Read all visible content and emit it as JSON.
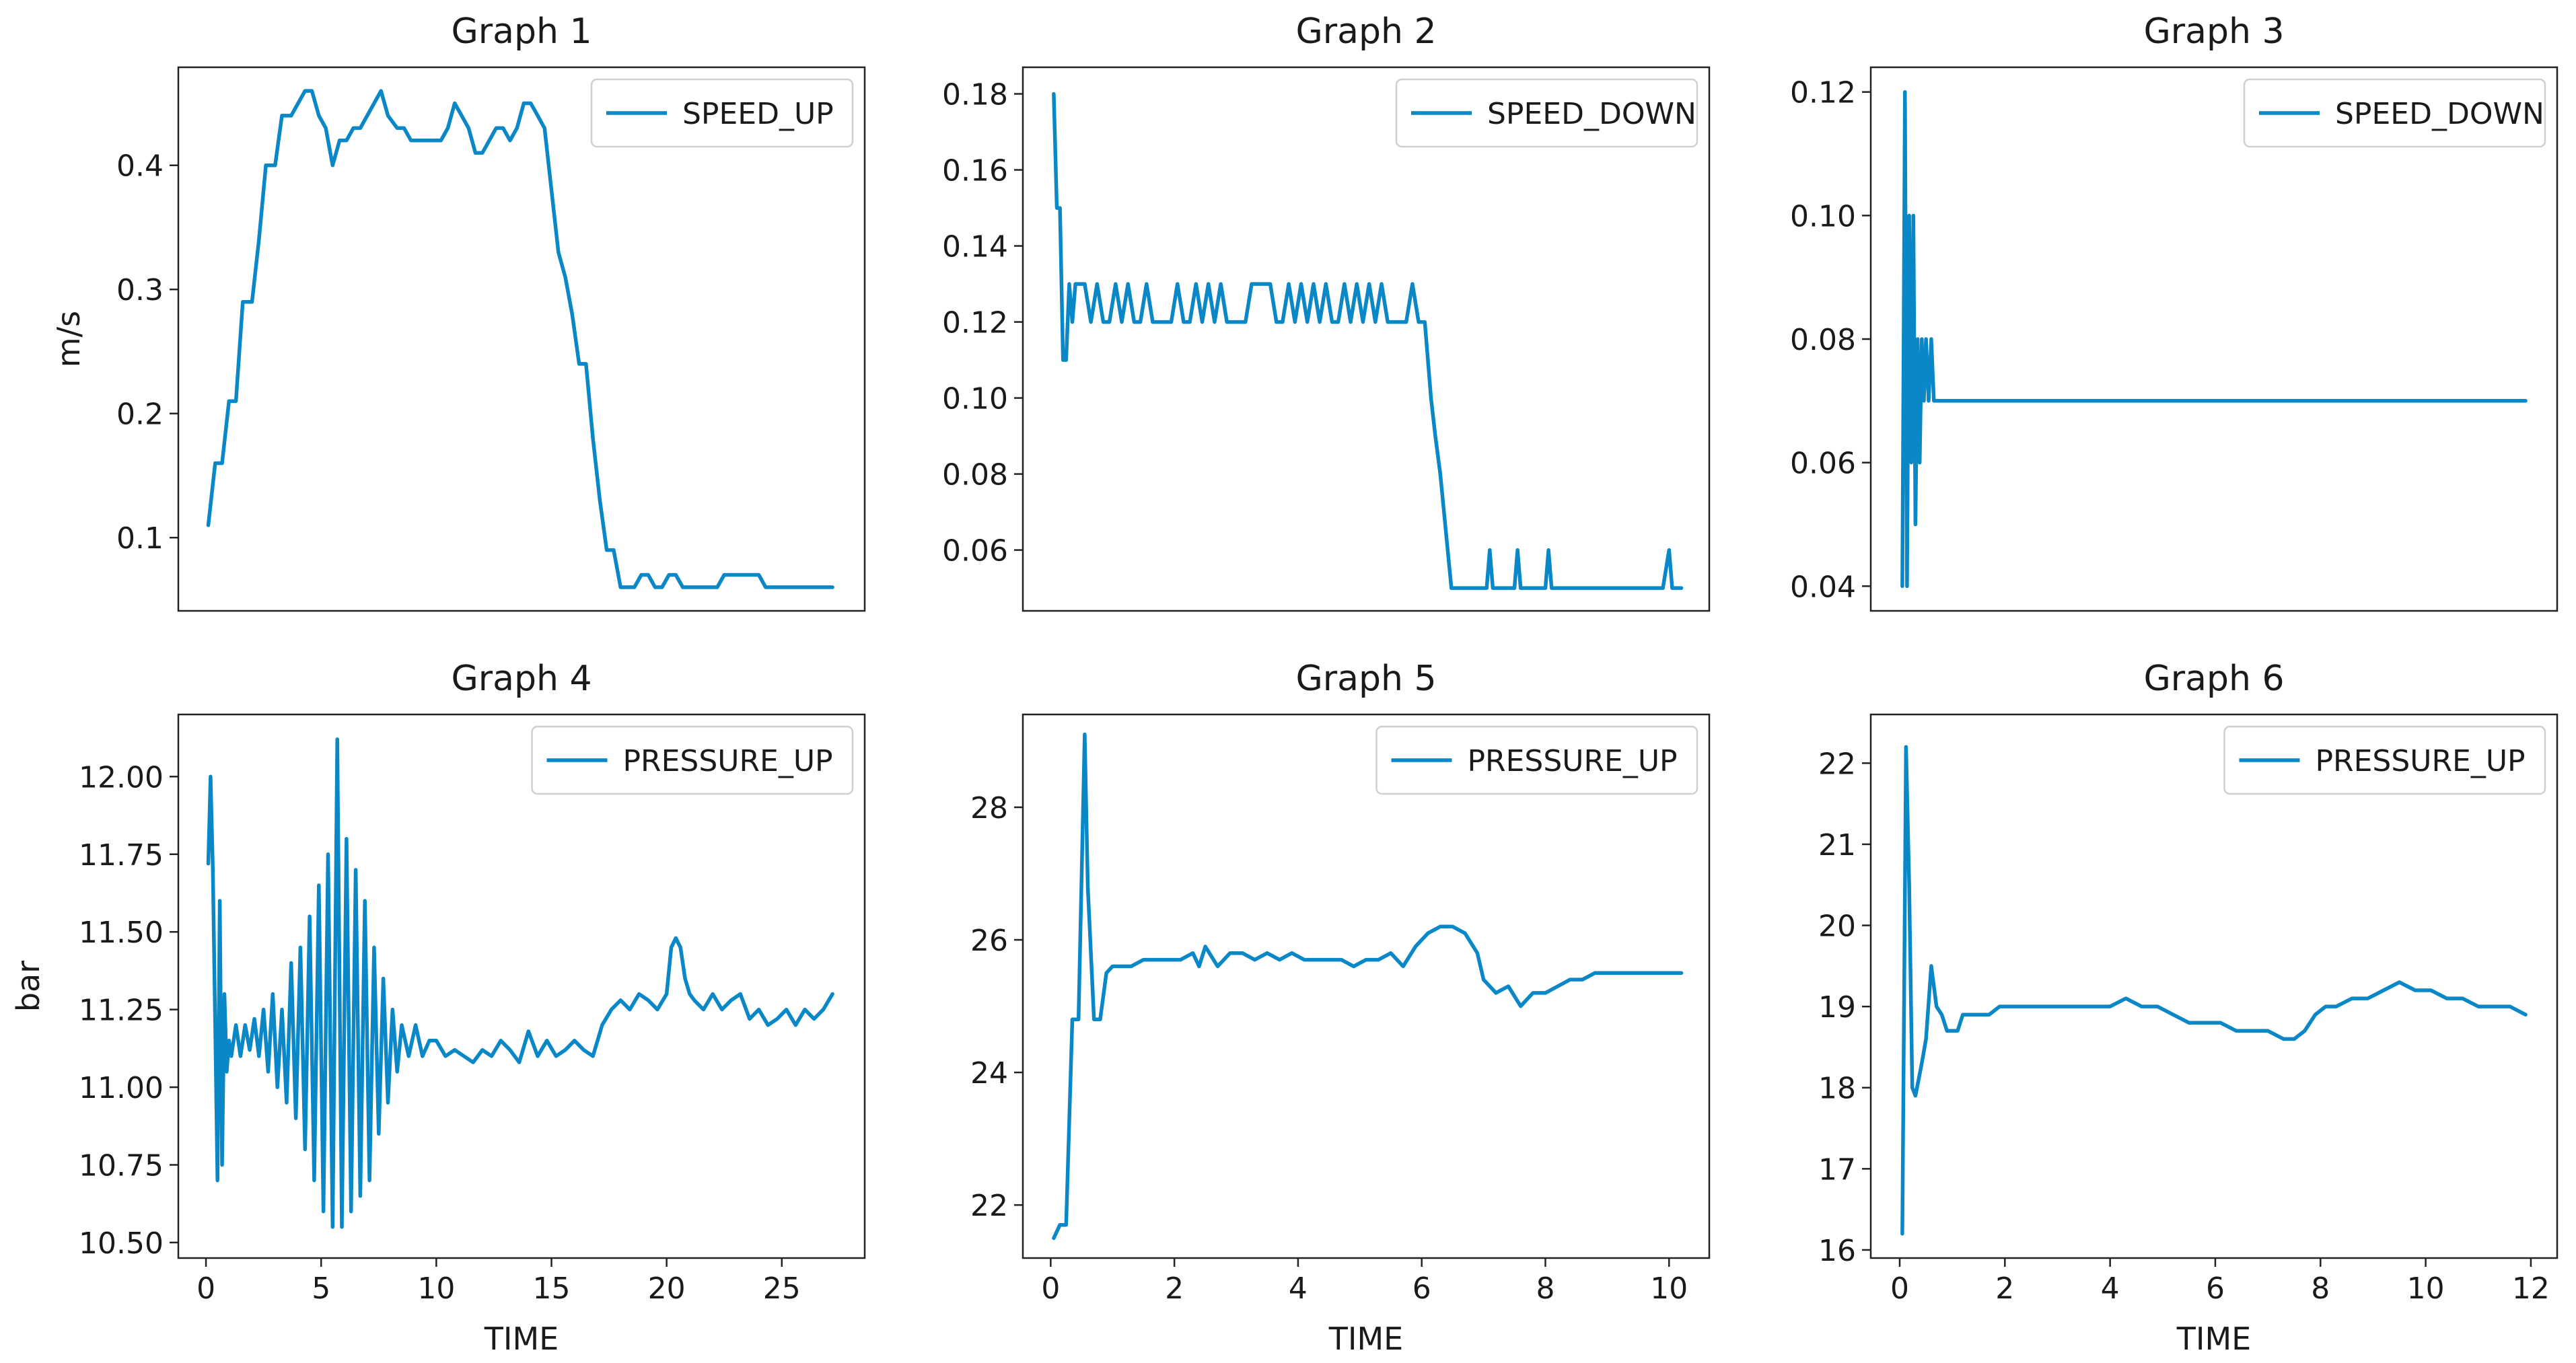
{
  "figure": {
    "series_color": "#0a87c6"
  },
  "chart_data": [
    {
      "type": "line",
      "title": "Graph 1",
      "xlabel": "",
      "ylabel": "m/s",
      "xlim": [
        -1.2,
        28.6
      ],
      "ylim": [
        0.041,
        0.479
      ],
      "xticks": [],
      "xtick_labels": [],
      "yticks": [
        0.1,
        0.2,
        0.3,
        0.4
      ],
      "ytick_labels": [
        "0.1",
        "0.2",
        "0.3",
        "0.4"
      ],
      "legend": "SPEED_UP",
      "legend_position": "top-right",
      "x": [
        0.1,
        0.4,
        0.7,
        1.0,
        1.3,
        1.6,
        2.0,
        2.3,
        2.6,
        3.0,
        3.3,
        3.7,
        4.0,
        4.3,
        4.6,
        4.9,
        5.2,
        5.5,
        5.8,
        6.1,
        6.4,
        6.7,
        7.0,
        7.3,
        7.6,
        7.9,
        8.3,
        8.6,
        8.9,
        9.3,
        9.6,
        9.9,
        10.2,
        10.5,
        10.8,
        11.1,
        11.4,
        11.7,
        12.0,
        12.3,
        12.6,
        12.9,
        13.2,
        13.5,
        13.8,
        14.1,
        14.4,
        14.7,
        15.0,
        15.3,
        15.6,
        15.9,
        16.2,
        16.5,
        16.8,
        17.1,
        17.4,
        17.7,
        18.0,
        18.3,
        18.6,
        18.9,
        19.2,
        19.5,
        19.8,
        20.1,
        20.4,
        20.7,
        21.0,
        21.3,
        21.6,
        21.9,
        22.2,
        22.5,
        22.8,
        23.1,
        23.4,
        23.7,
        24.0,
        24.3,
        24.6,
        24.9,
        25.2,
        25.5,
        25.8,
        26.1,
        26.4,
        26.7,
        27.0,
        27.2
      ],
      "y": [
        0.11,
        0.16,
        0.16,
        0.21,
        0.21,
        0.29,
        0.29,
        0.34,
        0.4,
        0.4,
        0.44,
        0.44,
        0.45,
        0.46,
        0.46,
        0.44,
        0.43,
        0.4,
        0.42,
        0.42,
        0.43,
        0.43,
        0.44,
        0.45,
        0.46,
        0.44,
        0.43,
        0.43,
        0.42,
        0.42,
        0.42,
        0.42,
        0.42,
        0.43,
        0.45,
        0.44,
        0.43,
        0.41,
        0.41,
        0.42,
        0.43,
        0.43,
        0.42,
        0.43,
        0.45,
        0.45,
        0.44,
        0.43,
        0.38,
        0.33,
        0.31,
        0.28,
        0.24,
        0.24,
        0.18,
        0.13,
        0.09,
        0.09,
        0.06,
        0.06,
        0.06,
        0.07,
        0.07,
        0.06,
        0.06,
        0.07,
        0.07,
        0.06,
        0.06,
        0.06,
        0.06,
        0.06,
        0.06,
        0.07,
        0.07,
        0.07,
        0.07,
        0.07,
        0.07,
        0.06,
        0.06,
        0.06,
        0.06,
        0.06,
        0.06,
        0.06,
        0.06,
        0.06,
        0.06,
        0.06
      ]
    },
    {
      "type": "line",
      "title": "Graph 2",
      "xlabel": "",
      "ylabel": "",
      "xlim": [
        -0.45,
        10.65
      ],
      "ylim": [
        0.044,
        0.187
      ],
      "xticks": [],
      "xtick_labels": [],
      "yticks": [
        0.06,
        0.08,
        0.1,
        0.12,
        0.14,
        0.16,
        0.18
      ],
      "ytick_labels": [
        "0.06",
        "0.08",
        "0.10",
        "0.12",
        "0.14",
        "0.16",
        "0.18"
      ],
      "legend": "SPEED_DOWN",
      "legend_position": "top-right",
      "x": [
        0.05,
        0.1,
        0.15,
        0.2,
        0.25,
        0.3,
        0.35,
        0.4,
        0.45,
        0.55,
        0.65,
        0.75,
        0.85,
        0.95,
        1.05,
        1.15,
        1.25,
        1.35,
        1.45,
        1.55,
        1.65,
        1.75,
        1.85,
        1.95,
        2.05,
        2.15,
        2.25,
        2.35,
        2.45,
        2.55,
        2.65,
        2.75,
        2.85,
        2.95,
        3.05,
        3.15,
        3.25,
        3.35,
        3.45,
        3.55,
        3.65,
        3.75,
        3.85,
        3.95,
        4.05,
        4.15,
        4.25,
        4.35,
        4.45,
        4.55,
        4.65,
        4.75,
        4.85,
        4.95,
        5.05,
        5.15,
        5.25,
        5.35,
        5.45,
        5.55,
        5.65,
        5.75,
        5.85,
        5.95,
        6.05,
        6.15,
        6.22,
        6.3,
        6.36,
        6.42,
        6.48,
        6.55,
        6.7,
        6.9,
        7.05,
        7.1,
        7.15,
        7.3,
        7.5,
        7.55,
        7.6,
        7.8,
        8.0,
        8.05,
        8.1,
        8.5,
        9.0,
        9.5,
        9.9,
        10.0,
        10.05,
        10.2
      ],
      "y": [
        0.18,
        0.15,
        0.15,
        0.11,
        0.11,
        0.13,
        0.12,
        0.13,
        0.13,
        0.13,
        0.12,
        0.13,
        0.12,
        0.12,
        0.13,
        0.12,
        0.13,
        0.12,
        0.12,
        0.13,
        0.12,
        0.12,
        0.12,
        0.12,
        0.13,
        0.12,
        0.12,
        0.13,
        0.12,
        0.13,
        0.12,
        0.13,
        0.12,
        0.12,
        0.12,
        0.12,
        0.13,
        0.13,
        0.13,
        0.13,
        0.12,
        0.12,
        0.13,
        0.12,
        0.13,
        0.12,
        0.13,
        0.12,
        0.13,
        0.12,
        0.12,
        0.13,
        0.12,
        0.13,
        0.12,
        0.13,
        0.12,
        0.13,
        0.12,
        0.12,
        0.12,
        0.12,
        0.13,
        0.12,
        0.12,
        0.1,
        0.09,
        0.08,
        0.07,
        0.06,
        0.05,
        0.05,
        0.05,
        0.05,
        0.05,
        0.06,
        0.05,
        0.05,
        0.05,
        0.06,
        0.05,
        0.05,
        0.05,
        0.06,
        0.05,
        0.05,
        0.05,
        0.05,
        0.05,
        0.06,
        0.05,
        0.05
      ]
    },
    {
      "type": "line",
      "title": "Graph 3",
      "xlabel": "",
      "ylabel": "",
      "xlim": [
        -0.55,
        12.5
      ],
      "ylim": [
        0.036,
        0.124
      ],
      "xticks": [],
      "xtick_labels": [],
      "yticks": [
        0.04,
        0.06,
        0.08,
        0.1,
        0.12
      ],
      "ytick_labels": [
        "0.04",
        "0.06",
        "0.08",
        "0.10",
        "0.12"
      ],
      "legend": "SPEED_DOWN",
      "legend_position": "top-right",
      "x": [
        0.05,
        0.1,
        0.14,
        0.18,
        0.22,
        0.26,
        0.3,
        0.34,
        0.38,
        0.42,
        0.46,
        0.5,
        0.55,
        0.6,
        0.65,
        0.7,
        1.0,
        3.0,
        6.0,
        9.0,
        11.9
      ],
      "y": [
        0.04,
        0.12,
        0.04,
        0.1,
        0.06,
        0.1,
        0.05,
        0.08,
        0.06,
        0.08,
        0.07,
        0.08,
        0.07,
        0.08,
        0.07,
        0.07,
        0.07,
        0.07,
        0.07,
        0.07,
        0.07
      ]
    },
    {
      "type": "line",
      "title": "Graph 4",
      "xlabel": "TIME",
      "ylabel": "bar",
      "xlim": [
        -1.2,
        28.6
      ],
      "ylim": [
        10.45,
        12.2
      ],
      "xticks": [
        0,
        5,
        10,
        15,
        20,
        25
      ],
      "xtick_labels": [
        "0",
        "5",
        "10",
        "15",
        "20",
        "25"
      ],
      "yticks": [
        10.5,
        10.75,
        11.0,
        11.25,
        11.5,
        11.75,
        12.0
      ],
      "ytick_labels": [
        "10.50",
        "10.75",
        "11.00",
        "11.25",
        "11.50",
        "11.75",
        "12.00"
      ],
      "legend": "PRESSURE_UP",
      "legend_position": "top-right",
      "x": [
        0.1,
        0.2,
        0.3,
        0.4,
        0.5,
        0.6,
        0.7,
        0.8,
        0.9,
        1.0,
        1.1,
        1.3,
        1.5,
        1.7,
        1.9,
        2.1,
        2.3,
        2.5,
        2.7,
        2.9,
        3.1,
        3.3,
        3.5,
        3.7,
        3.9,
        4.1,
        4.3,
        4.5,
        4.7,
        4.9,
        5.1,
        5.3,
        5.5,
        5.7,
        5.9,
        6.1,
        6.3,
        6.5,
        6.7,
        6.9,
        7.1,
        7.3,
        7.5,
        7.7,
        7.9,
        8.1,
        8.3,
        8.5,
        8.8,
        9.1,
        9.4,
        9.7,
        10.0,
        10.4,
        10.8,
        11.2,
        11.6,
        12.0,
        12.4,
        12.8,
        13.2,
        13.6,
        14.0,
        14.4,
        14.8,
        15.2,
        15.6,
        16.0,
        16.4,
        16.8,
        17.2,
        17.6,
        18.0,
        18.4,
        18.8,
        19.2,
        19.6,
        20.0,
        20.2,
        20.4,
        20.6,
        20.8,
        21.0,
        21.2,
        21.6,
        22.0,
        22.4,
        22.8,
        23.2,
        23.6,
        24.0,
        24.4,
        24.8,
        25.2,
        25.6,
        26.0,
        26.4,
        26.8,
        27.2
      ],
      "y": [
        11.72,
        12.0,
        11.7,
        11.2,
        10.7,
        11.6,
        10.75,
        11.3,
        11.05,
        11.15,
        11.1,
        11.2,
        11.1,
        11.2,
        11.12,
        11.22,
        11.1,
        11.25,
        11.05,
        11.3,
        11.0,
        11.25,
        10.95,
        11.4,
        10.9,
        11.45,
        10.8,
        11.55,
        10.7,
        11.65,
        10.6,
        11.75,
        10.55,
        12.12,
        10.55,
        11.8,
        10.6,
        11.7,
        10.65,
        11.6,
        10.7,
        11.45,
        10.85,
        11.35,
        10.95,
        11.25,
        11.05,
        11.2,
        11.1,
        11.2,
        11.1,
        11.15,
        11.15,
        11.1,
        11.12,
        11.1,
        11.08,
        11.12,
        11.1,
        11.15,
        11.12,
        11.08,
        11.18,
        11.1,
        11.15,
        11.1,
        11.12,
        11.15,
        11.12,
        11.1,
        11.2,
        11.25,
        11.28,
        11.25,
        11.3,
        11.28,
        11.25,
        11.3,
        11.45,
        11.48,
        11.45,
        11.35,
        11.3,
        11.28,
        11.25,
        11.3,
        11.25,
        11.28,
        11.3,
        11.22,
        11.25,
        11.2,
        11.22,
        11.25,
        11.2,
        11.25,
        11.22,
        11.25,
        11.3
      ]
    },
    {
      "type": "line",
      "title": "Graph 5",
      "xlabel": "TIME",
      "ylabel": "",
      "xlim": [
        -0.45,
        10.65
      ],
      "ylim": [
        21.2,
        29.4
      ],
      "xticks": [
        0,
        2,
        4,
        6,
        8,
        10
      ],
      "xtick_labels": [
        "0",
        "2",
        "4",
        "6",
        "8",
        "10"
      ],
      "yticks": [
        22,
        24,
        26,
        28
      ],
      "ytick_labels": [
        "22",
        "24",
        "26",
        "28"
      ],
      "legend": "PRESSURE_UP",
      "legend_position": "top-right",
      "x": [
        0.05,
        0.15,
        0.25,
        0.35,
        0.45,
        0.55,
        0.6,
        0.7,
        0.8,
        0.9,
        1.0,
        1.1,
        1.3,
        1.5,
        1.7,
        1.9,
        2.1,
        2.3,
        2.4,
        2.5,
        2.7,
        2.9,
        3.1,
        3.3,
        3.5,
        3.7,
        3.9,
        4.1,
        4.3,
        4.5,
        4.7,
        4.9,
        5.1,
        5.3,
        5.5,
        5.7,
        5.9,
        6.1,
        6.3,
        6.5,
        6.7,
        6.9,
        7.0,
        7.2,
        7.4,
        7.6,
        7.8,
        8.0,
        8.2,
        8.4,
        8.6,
        8.8,
        9.0,
        9.2,
        9.4,
        9.6,
        9.8,
        10.0,
        10.2
      ],
      "y": [
        21.5,
        21.7,
        21.7,
        24.8,
        24.8,
        29.1,
        26.8,
        24.8,
        24.8,
        25.5,
        25.6,
        25.6,
        25.6,
        25.7,
        25.7,
        25.7,
        25.7,
        25.8,
        25.6,
        25.9,
        25.6,
        25.8,
        25.8,
        25.7,
        25.8,
        25.7,
        25.8,
        25.7,
        25.7,
        25.7,
        25.7,
        25.6,
        25.7,
        25.7,
        25.8,
        25.6,
        25.9,
        26.1,
        26.2,
        26.2,
        26.1,
        25.8,
        25.4,
        25.2,
        25.3,
        25.0,
        25.2,
        25.2,
        25.3,
        25.4,
        25.4,
        25.5,
        25.5,
        25.5,
        25.5,
        25.5,
        25.5,
        25.5,
        25.5
      ]
    },
    {
      "type": "line",
      "title": "Graph 6",
      "xlabel": "TIME",
      "ylabel": "",
      "xlim": [
        -0.55,
        12.5
      ],
      "ylim": [
        15.9,
        22.6
      ],
      "xticks": [
        0,
        2,
        4,
        6,
        8,
        10,
        12
      ],
      "xtick_labels": [
        "0",
        "2",
        "4",
        "6",
        "8",
        "10",
        "12"
      ],
      "yticks": [
        16,
        17,
        18,
        19,
        20,
        21,
        22
      ],
      "ytick_labels": [
        "16",
        "17",
        "18",
        "19",
        "20",
        "21",
        "22"
      ],
      "legend": "PRESSURE_UP",
      "legend_position": "top-right",
      "x": [
        0.05,
        0.12,
        0.18,
        0.24,
        0.3,
        0.36,
        0.42,
        0.5,
        0.6,
        0.7,
        0.8,
        0.9,
        1.0,
        1.1,
        1.2,
        1.3,
        1.5,
        1.7,
        1.9,
        2.1,
        2.3,
        2.5,
        2.8,
        3.1,
        3.4,
        3.7,
        4.0,
        4.3,
        4.6,
        4.9,
        5.2,
        5.5,
        5.8,
        6.1,
        6.4,
        6.7,
        7.0,
        7.3,
        7.5,
        7.7,
        7.9,
        8.1,
        8.3,
        8.6,
        8.9,
        9.2,
        9.5,
        9.8,
        10.1,
        10.4,
        10.7,
        11.0,
        11.3,
        11.6,
        11.9
      ],
      "y": [
        16.2,
        22.2,
        20.5,
        18.0,
        17.9,
        18.1,
        18.3,
        18.6,
        19.5,
        19.0,
        18.9,
        18.7,
        18.7,
        18.7,
        18.9,
        18.9,
        18.9,
        18.9,
        19.0,
        19.0,
        19.0,
        19.0,
        19.0,
        19.0,
        19.0,
        19.0,
        19.0,
        19.1,
        19.0,
        19.0,
        18.9,
        18.8,
        18.8,
        18.8,
        18.7,
        18.7,
        18.7,
        18.6,
        18.6,
        18.7,
        18.9,
        19.0,
        19.0,
        19.1,
        19.1,
        19.2,
        19.3,
        19.2,
        19.2,
        19.1,
        19.1,
        19.0,
        19.0,
        19.0,
        18.9
      ]
    }
  ]
}
